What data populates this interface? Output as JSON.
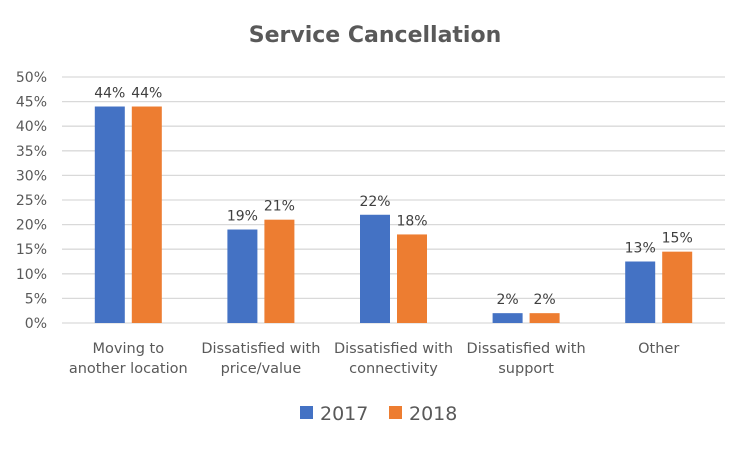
{
  "chart_data": {
    "type": "bar",
    "title": "Service Cancellation",
    "xlabel": "",
    "ylabel": "",
    "ylim": [
      0,
      0.5
    ],
    "yticks": [
      "0%",
      "5%",
      "10%",
      "15%",
      "20%",
      "25%",
      "30%",
      "35%",
      "40%",
      "45%",
      "50%"
    ],
    "grid": true,
    "legend_position": "bottom",
    "categories": [
      [
        "Moving to",
        "another location"
      ],
      [
        "Dissatisfied with",
        "price/value"
      ],
      [
        "Dissatisfied with",
        "connectivity"
      ],
      [
        "Dissatisfied with",
        "support"
      ],
      [
        "Other"
      ]
    ],
    "series": [
      {
        "name": "2017",
        "color": "#4472c4",
        "values": [
          0.44,
          0.19,
          0.22,
          0.02,
          0.125
        ],
        "labels": [
          "44%",
          "19%",
          "22%",
          "2%",
          "13%"
        ]
      },
      {
        "name": "2018",
        "color": "#ed7d31",
        "values": [
          0.44,
          0.21,
          0.18,
          0.02,
          0.145
        ],
        "labels": [
          "44%",
          "21%",
          "18%",
          "2%",
          "15%"
        ]
      }
    ]
  }
}
